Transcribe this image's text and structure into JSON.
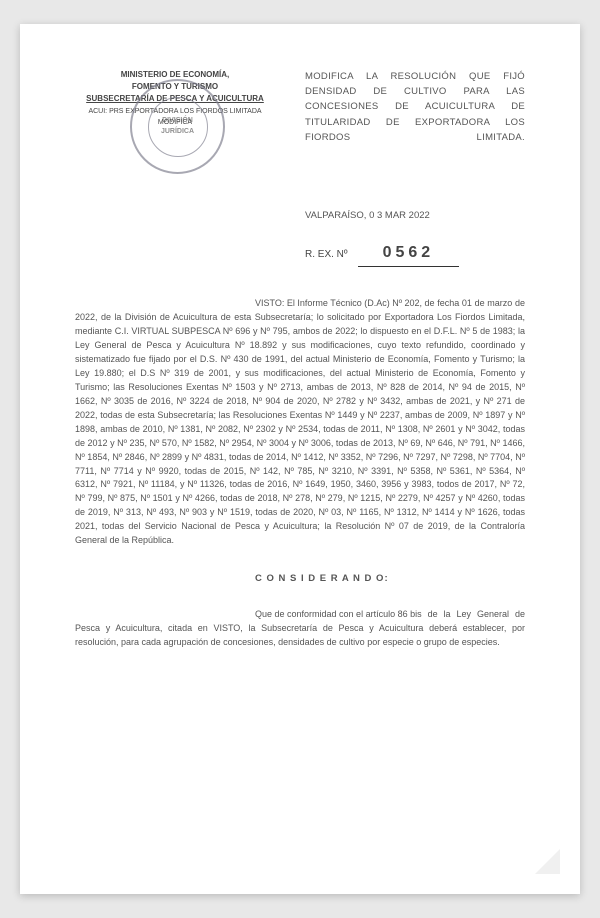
{
  "header": {
    "line1": "MINISTERIO DE ECONOMÍA,",
    "line2": "FOMENTO Y TURISMO",
    "line3": "SUBSECRETARÍA DE PESCA Y ACUICULTURA",
    "line4": "ACUI: PRS EXPORTADORA LOS FIORDOS LIMITADA MODIFICA"
  },
  "stamp": {
    "inner1": "DIVISIÓN",
    "inner2": "JURÍDICA"
  },
  "title": "MODIFICA LA RESOLUCIÓN QUE FIJÓ DENSIDAD DE CULTIVO PARA LAS CONCESIONES DE ACUICULTURA DE TITULARIDAD DE EXPORTADORA LOS FIORDOS LIMITADA.",
  "location": "VALPARAÍSO,",
  "date": "0 3 MAR 2022",
  "rex_label": "R. EX. Nº",
  "rex_number": "0562",
  "visto_lead": "VISTO: El Informe Técnico (D.Ac) Nº 202, de",
  "visto_body": "fecha 01 de marzo de 2022, de la División de Acuicultura de esta Subsecretaría; lo solicitado por Exportadora Los Fiordos Limitada, mediante C.I. VIRTUAL SUBPESCA Nº 696 y Nº 795, ambos de 2022; lo dispuesto en el D.F.L. Nº 5 de 1983; la Ley General de Pesca y Acuicultura Nº 18.892 y sus modificaciones, cuyo texto refundido, coordinado y sistematizado fue fijado por el D.S. Nº 430 de 1991, del actual Ministerio de Economía, Fomento y Turismo; la Ley 19.880; el D.S Nº 319 de 2001, y sus modificaciones, del actual Ministerio de Economía, Fomento y Turismo; las Resoluciones Exentas Nº 1503 y Nº 2713, ambas de 2013, Nº 828 de 2014, Nº 94 de 2015, Nº 1662, Nº 3035 de 2016, Nº 3224 de 2018, Nº 904 de 2020, Nº 2782 y Nº 3432, ambas de 2021, y Nº 271 de 2022, todas de esta Subsecretaría; las Resoluciones Exentas Nº 1449 y Nº 2237, ambas de 2009, Nº 1897 y Nº 1898, ambas de 2010, Nº 1381, Nº 2082, Nº 2302 y Nº 2534, todas de 2011, Nº 1308, Nº 2601 y Nº 3042, todas de 2012 y Nº 235, Nº 570, Nº 1582, Nº 2954, Nº 3004 y Nº 3006, todas de 2013, Nº 69, Nº 646, Nº 791, Nº 1466, Nº 1854, Nº 2846, Nº 2899 y Nº 4831, todas de 2014, Nº 1412, Nº 3352, Nº 7296, Nº 7297, Nº 7298, Nº 7704, Nº 7711, Nº 7714 y Nº 9920, todas de 2015, Nº 142, Nº 785, Nº 3210, Nº 3391, Nº 5358, Nº 5361, Nº 5364, Nº 6312, Nº 7921, Nº 11184, y Nº 11326, todas de 2016, Nº 1649, 1950, 3460, 3956 y 3983, todos de 2017, Nº 72, Nº 799, Nº 875, Nº 1501 y Nº 4266, todas de 2018, Nº 278, Nº 279, Nº 1215, Nº 2279, Nº 4257 y Nº 4260, todas de 2019, Nº 313, Nº 493, Nº 903 y Nº 1519, todas de 2020, Nº 03, Nº 1165, Nº 1312, Nº 1414 y Nº 1626, todas 2021, todas del Servicio Nacional de Pesca y Acuicultura; la Resolución Nº 07 de 2019, de la Contraloría General de la República.",
  "considerando_title": "C O N S I D E R A N D O:",
  "considerando_lead": "Que de conformidad con el artículo 86 bis",
  "considerando_body": "de la Ley General de Pesca y Acuicultura, citada en VISTO, la Subsecretaría de Pesca y Acuicultura deberá establecer, por resolución, para cada agrupación de concesiones, densidades de cultivo por especie o grupo de especies."
}
